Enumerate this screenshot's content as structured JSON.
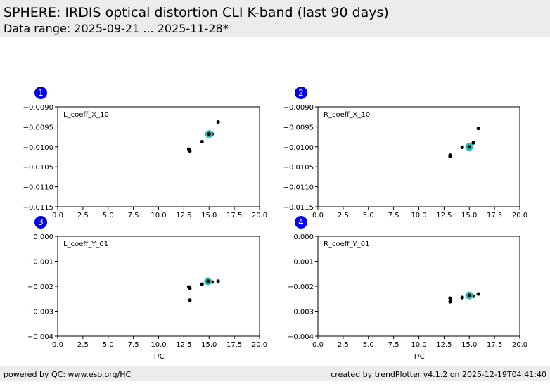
{
  "header": {
    "title": "SPHERE: IRDIS optical distortion CLI K-band (last 90 days)",
    "subtitle": "Data range: 2025-09-21 ... 2025-11-28*"
  },
  "footer": {
    "left": "powered by QC: www.eso.org/HC",
    "right": "created by trendPlotter v4.1.2 on 2025-12-19T04:41:40"
  },
  "chart_data": [
    {
      "type": "scatter",
      "panel": "1",
      "label": "L_coeff_X_10",
      "xlim": [
        0,
        20
      ],
      "xticks": [
        {
          "value": 0,
          "label": "0.0"
        },
        {
          "value": 2.5,
          "label": "2.5"
        },
        {
          "value": 5,
          "label": "5.0"
        },
        {
          "value": 7.5,
          "label": "7.5"
        },
        {
          "value": 10,
          "label": "10.0"
        },
        {
          "value": 12.5,
          "label": "12.5"
        },
        {
          "value": 15,
          "label": "15.0"
        },
        {
          "value": 17.5,
          "label": "17.5"
        },
        {
          "value": 20,
          "label": "20.0"
        }
      ],
      "ylim": [
        -0.0115,
        -0.009
      ],
      "yticks": [
        {
          "value": -0.0115,
          "label": "−0.0115"
        },
        {
          "value": -0.011,
          "label": "−0.0110"
        },
        {
          "value": -0.0105,
          "label": "−0.0105"
        },
        {
          "value": -0.01,
          "label": "−0.0100"
        },
        {
          "value": -0.0095,
          "label": "−0.0095"
        },
        {
          "value": -0.009,
          "label": "−0.0090"
        }
      ],
      "series": [
        {
          "color": "#000000",
          "x": [
            13.0,
            13.1,
            14.3,
            15.3,
            15.9
          ],
          "values": [
            -0.01006,
            -0.0101,
            -0.00987,
            -0.00968,
            -0.00938
          ]
        },
        {
          "color": "#20c0c0",
          "x": [
            15.0
          ],
          "values": [
            -0.00968
          ]
        }
      ]
    },
    {
      "type": "scatter",
      "panel": "2",
      "label": "R_coeff_X_10",
      "xlim": [
        0,
        20
      ],
      "xticks": [
        {
          "value": 0,
          "label": "0.0"
        },
        {
          "value": 2.5,
          "label": "2.5"
        },
        {
          "value": 5,
          "label": "5.0"
        },
        {
          "value": 7.5,
          "label": "7.5"
        },
        {
          "value": 10,
          "label": "10.0"
        },
        {
          "value": 12.5,
          "label": "12.5"
        },
        {
          "value": 15,
          "label": "15.0"
        },
        {
          "value": 17.5,
          "label": "17.5"
        },
        {
          "value": 20,
          "label": "20.0"
        }
      ],
      "ylim": [
        -0.0115,
        -0.009
      ],
      "yticks": [
        {
          "value": -0.0115,
          "label": "−0.0115"
        },
        {
          "value": -0.011,
          "label": "−0.0110"
        },
        {
          "value": -0.0105,
          "label": "−0.0105"
        },
        {
          "value": -0.01,
          "label": "−0.0100"
        },
        {
          "value": -0.0095,
          "label": "−0.0095"
        },
        {
          "value": -0.009,
          "label": "−0.0090"
        }
      ],
      "series": [
        {
          "color": "#000000",
          "x": [
            13.1,
            13.1,
            14.3,
            15.4,
            15.9
          ],
          "values": [
            -0.01021,
            -0.01024,
            -0.01001,
            -0.0099,
            -0.00954
          ]
        },
        {
          "color": "#20c0c0",
          "x": [
            15.0
          ],
          "values": [
            -0.01
          ]
        }
      ]
    },
    {
      "type": "scatter",
      "panel": "3",
      "label": "L_coeff_Y_01",
      "xlabel": "T/C",
      "xlim": [
        0,
        20
      ],
      "xticks": [
        {
          "value": 0,
          "label": "0.0"
        },
        {
          "value": 2.5,
          "label": "2.5"
        },
        {
          "value": 5,
          "label": "5.0"
        },
        {
          "value": 7.5,
          "label": "7.5"
        },
        {
          "value": 10,
          "label": "10.0"
        },
        {
          "value": 12.5,
          "label": "12.5"
        },
        {
          "value": 15,
          "label": "15.0"
        },
        {
          "value": 17.5,
          "label": "17.5"
        },
        {
          "value": 20,
          "label": "20.0"
        }
      ],
      "ylim": [
        -0.004,
        0
      ],
      "yticks": [
        {
          "value": -0.004,
          "label": "−0.004"
        },
        {
          "value": -0.003,
          "label": "−0.003"
        },
        {
          "value": -0.002,
          "label": "−0.002"
        },
        {
          "value": -0.001,
          "label": "−0.001"
        },
        {
          "value": 0,
          "label": "0.000"
        }
      ],
      "series": [
        {
          "color": "#000000",
          "x": [
            13.0,
            13.1,
            13.1,
            14.3,
            15.3,
            15.9
          ],
          "values": [
            -0.00203,
            -0.00208,
            -0.00256,
            -0.00192,
            -0.00183,
            -0.0018
          ]
        },
        {
          "color": "#20c0c0",
          "x": [
            14.9
          ],
          "values": [
            -0.0018
          ]
        }
      ]
    },
    {
      "type": "scatter",
      "panel": "4",
      "label": "R_coeff_Y_01",
      "xlabel": "T/C",
      "xlim": [
        0,
        20
      ],
      "xticks": [
        {
          "value": 0,
          "label": "0.0"
        },
        {
          "value": 2.5,
          "label": "2.5"
        },
        {
          "value": 5,
          "label": "5.0"
        },
        {
          "value": 7.5,
          "label": "7.5"
        },
        {
          "value": 10,
          "label": "10.0"
        },
        {
          "value": 12.5,
          "label": "12.5"
        },
        {
          "value": 15,
          "label": "15.0"
        },
        {
          "value": 17.5,
          "label": "17.5"
        },
        {
          "value": 20,
          "label": "20.0"
        }
      ],
      "ylim": [
        -0.004,
        0
      ],
      "yticks": [
        {
          "value": -0.004,
          "label": "−0.004"
        },
        {
          "value": -0.003,
          "label": "−0.003"
        },
        {
          "value": -0.002,
          "label": "−0.002"
        },
        {
          "value": -0.001,
          "label": "−0.001"
        },
        {
          "value": 0,
          "label": "0.000"
        }
      ],
      "series": [
        {
          "color": "#000000",
          "x": [
            13.1,
            13.1,
            14.3,
            15.4,
            15.9
          ],
          "values": [
            -0.00248,
            -0.00262,
            -0.00245,
            -0.0024,
            -0.00231
          ]
        },
        {
          "color": "#20c0c0",
          "x": [
            15.0
          ],
          "values": [
            -0.00237
          ]
        }
      ]
    }
  ]
}
